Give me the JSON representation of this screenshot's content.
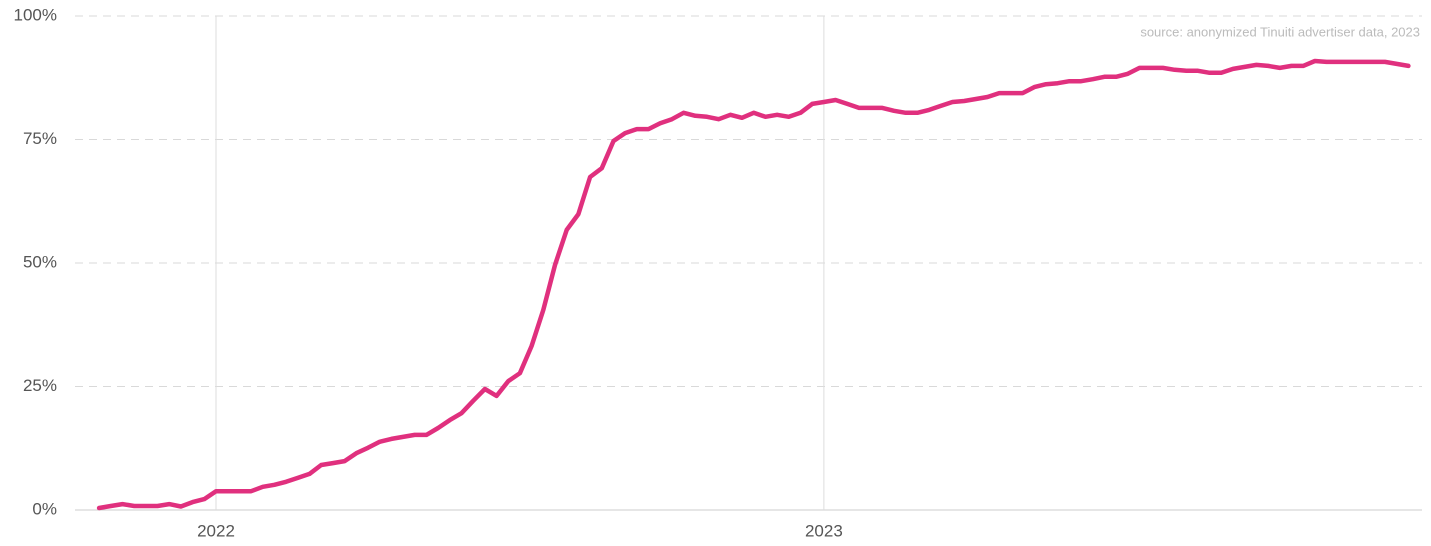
{
  "chart_data": {
    "type": "line",
    "annotation": "source: anonymized Tinuiti advertiser data, 2023",
    "categories": [
      null,
      null,
      null,
      null,
      null,
      null,
      null,
      null,
      null,
      null,
      "2022",
      null,
      null,
      null,
      null,
      null,
      null,
      null,
      null,
      null,
      null,
      null,
      null,
      null,
      null,
      null,
      null,
      null,
      null,
      null,
      null,
      null,
      null,
      null,
      null,
      null,
      null,
      null,
      null,
      null,
      null,
      null,
      null,
      null,
      null,
      null,
      null,
      null,
      null,
      null,
      null,
      null,
      null,
      null,
      null,
      null,
      null,
      null,
      null,
      null,
      null,
      null,
      "2023",
      null,
      null,
      null,
      null,
      null,
      null,
      null,
      null,
      null,
      null,
      null,
      null,
      null,
      null,
      null,
      null,
      null,
      null,
      null,
      null,
      null,
      null,
      null,
      null,
      null,
      null,
      null,
      null,
      null,
      null,
      null,
      null,
      null,
      null,
      null,
      null,
      null,
      null,
      null,
      null,
      null,
      null,
      null,
      null,
      null,
      null,
      null,
      null,
      null,
      null
    ],
    "values": [
      0.4,
      0.8,
      1.2,
      0.8,
      0.8,
      0.8,
      1.2,
      0.7,
      1.6,
      2.2,
      3.8,
      3.8,
      3.8,
      3.8,
      4.7,
      5.1,
      5.7,
      6.5,
      7.3,
      9.1,
      9.5,
      9.9,
      11.5,
      12.6,
      13.8,
      14.4,
      14.8,
      15.2,
      15.2,
      16.6,
      18.2,
      19.6,
      22.1,
      24.5,
      23.1,
      26.1,
      27.7,
      33.2,
      40.5,
      49.6,
      56.7,
      59.9,
      67.4,
      69.2,
      74.7,
      76.3,
      77.1,
      77.1,
      78.3,
      79.1,
      80.4,
      79.8,
      79.6,
      79.1,
      80.0,
      79.4,
      80.4,
      79.6,
      80.0,
      79.6,
      80.4,
      82.2,
      82.6,
      83.0,
      82.2,
      81.4,
      81.4,
      81.4,
      80.8,
      80.4,
      80.4,
      81.0,
      81.8,
      82.6,
      82.8,
      83.2,
      83.6,
      84.4,
      84.4,
      84.4,
      85.6,
      86.2,
      86.4,
      86.8,
      86.8,
      87.2,
      87.7,
      87.7,
      88.3,
      89.5,
      89.5,
      89.5,
      89.1,
      88.9,
      88.9,
      88.5,
      88.5,
      89.3,
      89.7,
      90.1,
      89.9,
      89.5,
      89.9,
      89.9,
      90.9,
      90.7,
      90.7,
      90.7,
      90.7,
      90.7,
      90.7,
      90.3,
      89.9
    ],
    "color": "#e0307e",
    "ylim": [
      0,
      100
    ],
    "yticks": [
      {
        "value": 0,
        "label": "0%"
      },
      {
        "value": 25,
        "label": "25%"
      },
      {
        "value": 50,
        "label": "50%"
      },
      {
        "value": 75,
        "label": "75%"
      },
      {
        "value": 100,
        "label": "100%"
      }
    ],
    "grid": true
  }
}
